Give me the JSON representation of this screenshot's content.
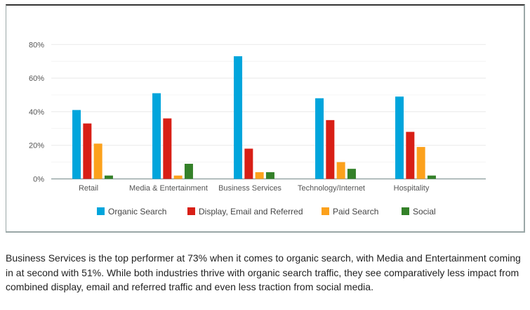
{
  "chart_data": {
    "type": "bar",
    "categories": [
      "Retail",
      "Media & Entertainment",
      "Business Services",
      "Technology/Internet",
      "Hospitality"
    ],
    "series": [
      {
        "name": "Organic Search",
        "color": "#00a5dc",
        "values": [
          41,
          51,
          73,
          48,
          49
        ]
      },
      {
        "name": "Display, Email and Referred",
        "color": "#d81f16",
        "values": [
          33,
          36,
          18,
          35,
          28
        ]
      },
      {
        "name": "Paid Search",
        "color": "#fca11c",
        "values": [
          21,
          2,
          4,
          10,
          19
        ]
      },
      {
        "name": "Social",
        "color": "#348129",
        "values": [
          2,
          9,
          4,
          6,
          2
        ]
      }
    ],
    "yticks": [
      "0%",
      "20%",
      "40%",
      "60%",
      "80%"
    ],
    "ylim": [
      0,
      80
    ],
    "grid": true,
    "legend_position": "bottom"
  },
  "caption": "Business Services is the top performer at 73% when it comes to organic search, with Media and Entertainment coming in at second with 51%. While both industries thrive with organic search traffic, they see comparatively less impact from combined display, email and referred traffic and even less traction from social media."
}
